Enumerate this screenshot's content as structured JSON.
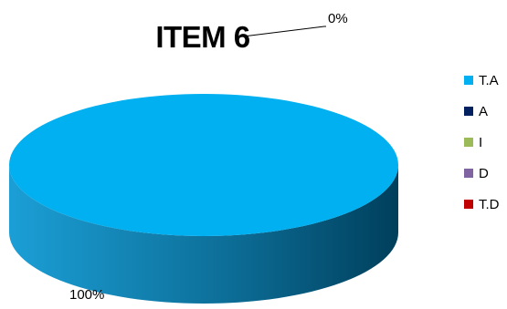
{
  "chart_data": {
    "type": "pie",
    "title": "ITEM 6",
    "three_d": true,
    "legend_position": "right",
    "categories": [
      "T.A",
      "A",
      "I",
      "D",
      "T.D"
    ],
    "values": [
      100,
      0,
      0,
      0,
      0
    ],
    "data_labels": [
      "100%",
      "0%",
      "",
      "",
      ""
    ],
    "colors": [
      "#00b0f0",
      "#002060",
      "#9bbb59",
      "#8064a2",
      "#c00000"
    ]
  }
}
